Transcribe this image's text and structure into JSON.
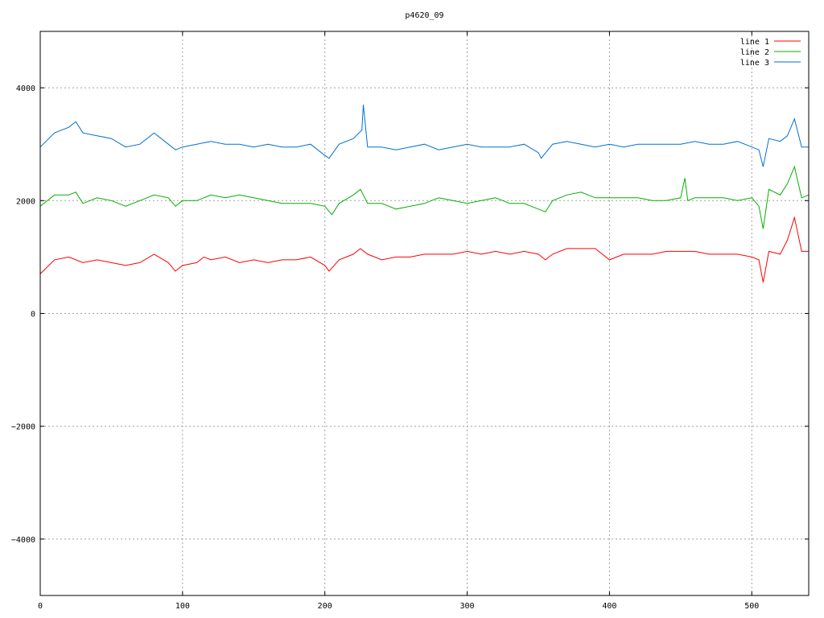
{
  "chart_data": {
    "type": "line",
    "title": "p4620_09",
    "xlabel": "",
    "ylabel": "",
    "xlim": [
      0,
      540
    ],
    "ylim": [
      -5000,
      5000
    ],
    "grid": true,
    "legend_position": "top-right",
    "x_ticks": [
      0,
      100,
      200,
      300,
      400,
      500
    ],
    "y_ticks": [
      -4000,
      -2000,
      0,
      2000,
      4000
    ],
    "x_tick_labels": [
      "0",
      "100",
      "200",
      "300",
      "400",
      "500"
    ],
    "y_tick_labels": [
      "−4000",
      "−2000",
      "0",
      "2000",
      "4000"
    ],
    "series": [
      {
        "name": "line 1",
        "color": "#ff0000",
        "x": [
          0,
          10,
          20,
          30,
          40,
          50,
          60,
          70,
          80,
          90,
          95,
          100,
          110,
          115,
          120,
          130,
          140,
          150,
          160,
          170,
          180,
          190,
          200,
          203,
          210,
          220,
          225,
          230,
          240,
          250,
          260,
          270,
          280,
          290,
          300,
          310,
          320,
          330,
          340,
          350,
          355,
          360,
          370,
          380,
          390,
          400,
          410,
          420,
          430,
          440,
          450,
          460,
          470,
          480,
          490,
          500,
          505,
          508,
          512,
          520,
          525,
          530,
          535,
          540
        ],
        "y": [
          700,
          950,
          1000,
          900,
          950,
          900,
          850,
          900,
          1050,
          900,
          750,
          850,
          900,
          1000,
          950,
          1000,
          900,
          950,
          900,
          950,
          950,
          1000,
          850,
          750,
          950,
          1050,
          1150,
          1050,
          950,
          1000,
          1000,
          1050,
          1050,
          1050,
          1100,
          1050,
          1100,
          1050,
          1100,
          1050,
          950,
          1050,
          1150,
          1150,
          1150,
          950,
          1050,
          1050,
          1050,
          1100,
          1100,
          1100,
          1050,
          1050,
          1050,
          1000,
          950,
          550,
          1100,
          1050,
          1300,
          1700,
          1100,
          1100
        ]
      },
      {
        "name": "line 2",
        "color": "#00b000",
        "x": [
          0,
          10,
          20,
          25,
          30,
          40,
          50,
          60,
          70,
          80,
          90,
          95,
          100,
          110,
          120,
          130,
          140,
          150,
          160,
          170,
          180,
          190,
          200,
          205,
          210,
          220,
          225,
          230,
          240,
          250,
          260,
          270,
          280,
          290,
          300,
          310,
          320,
          330,
          340,
          350,
          355,
          360,
          370,
          380,
          390,
          400,
          410,
          420,
          430,
          440,
          450,
          453,
          455,
          460,
          470,
          480,
          490,
          500,
          505,
          508,
          512,
          520,
          525,
          530,
          535,
          540
        ],
        "y": [
          1900,
          2100,
          2100,
          2150,
          1950,
          2050,
          2000,
          1900,
          2000,
          2100,
          2050,
          1900,
          2000,
          2000,
          2100,
          2050,
          2100,
          2050,
          2000,
          1950,
          1950,
          1950,
          1900,
          1750,
          1950,
          2100,
          2200,
          1950,
          1950,
          1850,
          1900,
          1950,
          2050,
          2000,
          1950,
          2000,
          2050,
          1950,
          1950,
          1850,
          1800,
          2000,
          2100,
          2150,
          2050,
          2050,
          2050,
          2050,
          2000,
          2000,
          2050,
          2400,
          2000,
          2050,
          2050,
          2050,
          2000,
          2050,
          1900,
          1500,
          2200,
          2100,
          2300,
          2600,
          2050,
          2100
        ]
      },
      {
        "name": "line 3",
        "color": "#0070d0",
        "x": [
          0,
          10,
          20,
          25,
          30,
          40,
          50,
          60,
          70,
          80,
          90,
          95,
          100,
          110,
          120,
          130,
          140,
          150,
          160,
          170,
          180,
          190,
          200,
          203,
          210,
          220,
          226,
          227,
          230,
          240,
          250,
          260,
          270,
          280,
          290,
          300,
          310,
          320,
          330,
          340,
          350,
          352,
          360,
          370,
          380,
          390,
          400,
          410,
          420,
          430,
          440,
          450,
          460,
          470,
          480,
          490,
          500,
          505,
          508,
          512,
          520,
          525,
          530,
          535,
          540
        ],
        "y": [
          2950,
          3200,
          3300,
          3400,
          3200,
          3150,
          3100,
          2950,
          3000,
          3200,
          3000,
          2900,
          2950,
          3000,
          3050,
          3000,
          3000,
          2950,
          3000,
          2950,
          2950,
          3000,
          2800,
          2750,
          3000,
          3100,
          3250,
          3700,
          2950,
          2950,
          2900,
          2950,
          3000,
          2900,
          2950,
          3000,
          2950,
          2950,
          2950,
          3000,
          2850,
          2750,
          3000,
          3050,
          3000,
          2950,
          3000,
          2950,
          3000,
          3000,
          3000,
          3000,
          3050,
          3000,
          3000,
          3050,
          2950,
          2900,
          2600,
          3100,
          3050,
          3150,
          3450,
          2950,
          2950
        ]
      }
    ]
  }
}
